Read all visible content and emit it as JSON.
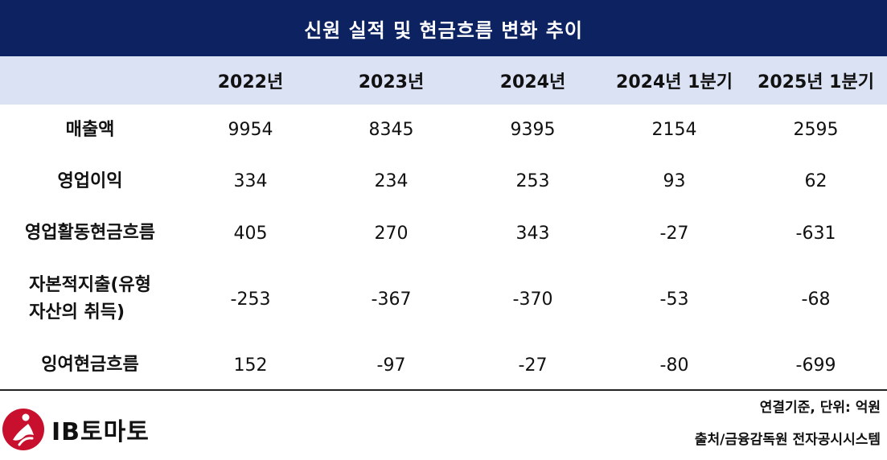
{
  "title": "신원 실적 및 현금흐름 변화 추이",
  "columns": [
    "",
    "2022년",
    "2023년",
    "2024년",
    "2024년 1분기",
    "2025년 1분기"
  ],
  "rows": [
    {
      "label_lines": [
        "매출액"
      ],
      "values": [
        "9954",
        "8345",
        "9395",
        "2154",
        "2595"
      ]
    },
    {
      "label_lines": [
        "영업이익"
      ],
      "values": [
        "334",
        "234",
        "253",
        "93",
        "62"
      ]
    },
    {
      "label_lines": [
        "영업활동현금흐름"
      ],
      "values": [
        "405",
        "270",
        "343",
        "-27",
        "-631"
      ]
    },
    {
      "label_lines": [
        "자본적지출(유형",
        "자산의 취득)"
      ],
      "values": [
        "-253",
        "-367",
        "-370",
        "-53",
        "-68"
      ]
    },
    {
      "label_lines": [
        "잉여현금흐름"
      ],
      "values": [
        "152",
        "-97",
        "-27",
        "-80",
        "-699"
      ]
    }
  ],
  "footer": {
    "unit_note": "연결기준, 단위: 억원",
    "source_note": "출처/금융감독원 전자공시시스템",
    "logo_text": "IB토마토",
    "logo_icon": "red-circle-runner-icon"
  },
  "colors": {
    "title_bg": "#0d2260",
    "header_bg": "#dbe2f4",
    "logo_red": "#c8102e"
  }
}
